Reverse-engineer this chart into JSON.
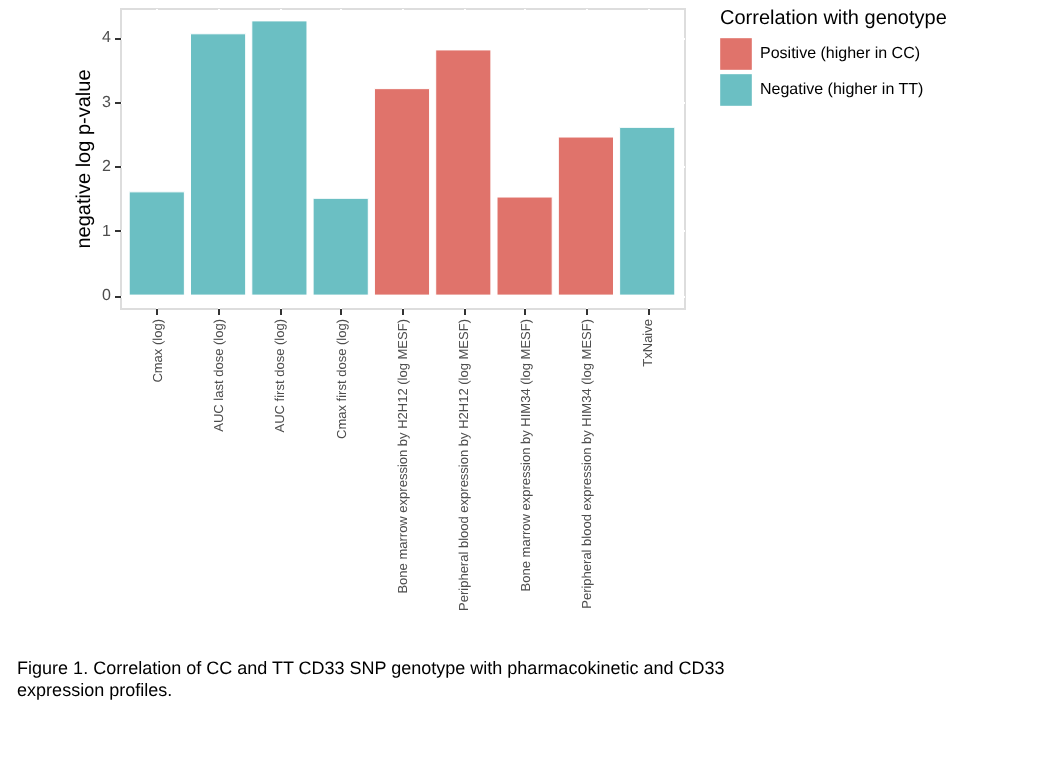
{
  "chart_data": {
    "type": "bar",
    "ylabel": "negative log p-value",
    "legend_title": "Correlation with genotype",
    "categories": [
      "Cmax (log)",
      "AUC last dose (log)",
      "AUC first dose (log)",
      "Cmax first dose (log)",
      "Bone marrow expression by H2H12 (log MESF)",
      "Peripheral blood expression by H2H12 (log MESF)",
      "Bone marrow expression by HIM34 (log MESF)",
      "Peripheral blood expression by HIM34 (log MESF)",
      "TxNaive"
    ],
    "series": [
      {
        "name": "Positive (higher in CC)",
        "color": "#e0736b",
        "values": [
          null,
          null,
          null,
          null,
          3.2,
          3.8,
          1.52,
          2.45,
          null
        ]
      },
      {
        "name": "Negative (higher in TT)",
        "color": "#6bbfc3",
        "values": [
          1.6,
          4.05,
          4.25,
          1.5,
          null,
          null,
          null,
          null,
          2.6
        ]
      }
    ],
    "ylim": [
      -0.2,
      4.45
    ],
    "yticks": [
      0,
      1,
      2,
      3,
      4
    ],
    "grid": true,
    "legend": "right",
    "annotations": [
      "Figure 1. Correlation of CC and TT CD33 SNP genotype with pharmacokinetic and CD33 expression profiles."
    ]
  }
}
